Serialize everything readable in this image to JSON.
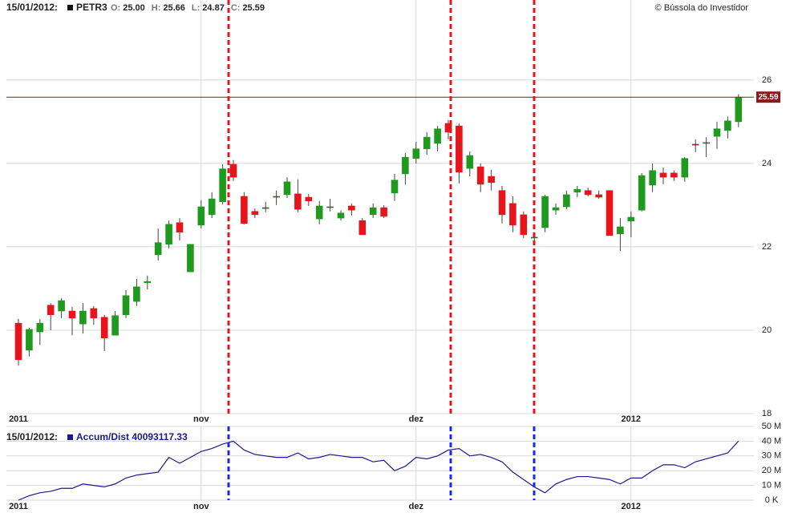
{
  "chart_data": {
    "type": "candlestick",
    "header": {
      "date": "15/01/2012:",
      "symbol": "PETR3",
      "fields": [
        {
          "label": "O:",
          "value": "25.00"
        },
        {
          "label": "H:",
          "value": "25.66"
        },
        {
          "label": "L:",
          "value": "24.87"
        },
        {
          "label": "C:",
          "value": "25.59"
        }
      ]
    },
    "copyright": "© Bússola do Investidor",
    "categories": [
      "2011",
      null,
      null,
      null,
      null,
      null,
      null,
      null,
      null,
      null,
      null,
      null,
      null,
      null,
      null,
      null,
      null,
      "nov",
      null,
      null,
      null,
      null,
      null,
      null,
      null,
      null,
      null,
      null,
      null,
      null,
      null,
      null,
      null,
      null,
      null,
      null,
      null,
      "dez",
      null,
      null,
      null,
      null,
      null,
      null,
      null,
      null,
      null,
      null,
      null,
      null,
      null,
      null,
      null,
      null,
      null,
      null,
      null,
      "2012",
      null,
      null,
      null,
      null,
      null,
      null,
      null,
      null,
      null,
      null
    ],
    "open": [
      20.17,
      19.52,
      19.96,
      20.6,
      20.46,
      20.46,
      20.15,
      20.52,
      20.31,
      19.88,
      20.37,
      20.69,
      21.14,
      21.81,
      22.06,
      22.58,
      21.4,
      22.52,
      22.77,
      23.08,
      23.98,
      23.21,
      22.85,
      22.92,
      23.19,
      23.25,
      23.27,
      23.19,
      22.67,
      22.96,
      22.69,
      22.98,
      22.63,
      22.77,
      22.94,
      23.29,
      23.75,
      24.12,
      24.35,
      24.48,
      24.96,
      24.9,
      23.88,
      23.92,
      23.69,
      23.35,
      23.04,
      22.77,
      22.23,
      22.46,
      22.88,
      22.96,
      23.31,
      23.35,
      23.25,
      23.35,
      22.31,
      22.62,
      22.88,
      23.48,
      23.77,
      23.77,
      23.67,
      24.46,
      24.5,
      24.65,
      24.79,
      25.0
    ],
    "high": [
      20.27,
      20.06,
      20.27,
      20.65,
      20.77,
      20.56,
      20.65,
      20.58,
      20.37,
      20.46,
      20.96,
      21.23,
      21.31,
      22.44,
      22.63,
      22.69,
      22.06,
      23.12,
      23.31,
      23.98,
      24.08,
      23.31,
      22.92,
      23.08,
      23.35,
      23.67,
      23.62,
      23.27,
      23.1,
      23.15,
      22.87,
      23.04,
      22.69,
      23.04,
      23.0,
      23.75,
      24.25,
      24.52,
      24.75,
      24.9,
      25.04,
      24.96,
      24.29,
      24.0,
      23.85,
      23.46,
      23.21,
      22.85,
      22.35,
      23.25,
      23.04,
      23.35,
      23.46,
      23.42,
      23.35,
      23.35,
      22.69,
      22.85,
      23.77,
      24.0,
      23.9,
      23.83,
      24.15,
      24.58,
      24.63,
      25.0,
      25.12,
      25.66
    ],
    "low": [
      19.15,
      19.37,
      19.65,
      20.0,
      20.29,
      19.88,
      19.92,
      20.13,
      19.5,
      19.88,
      20.29,
      20.58,
      20.98,
      21.67,
      21.96,
      22.15,
      21.4,
      22.44,
      22.69,
      23.02,
      23.58,
      22.54,
      22.69,
      22.83,
      23.0,
      23.17,
      22.83,
      22.98,
      22.54,
      22.85,
      22.63,
      22.75,
      22.29,
      22.69,
      22.69,
      23.1,
      23.5,
      24.0,
      24.21,
      24.29,
      24.58,
      23.52,
      23.69,
      23.31,
      23.35,
      22.56,
      22.35,
      22.21,
      22.1,
      22.35,
      22.77,
      22.9,
      23.19,
      23.21,
      23.15,
      22.27,
      21.9,
      22.23,
      22.85,
      23.31,
      23.5,
      23.58,
      23.56,
      24.27,
      24.15,
      24.35,
      24.6,
      24.87
    ],
    "close": [
      19.29,
      20.02,
      20.17,
      20.37,
      20.71,
      20.29,
      20.46,
      20.29,
      19.81,
      20.35,
      20.83,
      21.04,
      21.17,
      22.1,
      22.54,
      22.35,
      22.06,
      22.96,
      23.15,
      23.87,
      23.67,
      22.56,
      22.77,
      22.94,
      23.21,
      23.56,
      22.9,
      23.1,
      22.98,
      22.96,
      22.81,
      22.88,
      22.29,
      22.94,
      22.73,
      23.6,
      24.15,
      24.35,
      24.63,
      24.83,
      24.75,
      23.79,
      24.19,
      23.5,
      23.54,
      22.77,
      22.52,
      22.29,
      22.23,
      23.21,
      22.94,
      23.25,
      23.38,
      23.25,
      23.19,
      22.27,
      22.48,
      22.71,
      23.71,
      23.83,
      23.67,
      23.67,
      24.12,
      24.44,
      24.5,
      24.83,
      25.02,
      25.59
    ],
    "up_color": "#1f9a1f",
    "down_color": "#e8141c",
    "last_color": "#8b1a1a",
    "ylim": [
      18,
      27.92
    ],
    "yticks": [
      18,
      20,
      22,
      24,
      26
    ],
    "grid": true,
    "indicator": {
      "type": "line",
      "date": "15/01/2012:",
      "label": "Accum/Dist 40093117.33",
      "color": "#1a1a8c",
      "values": [
        0,
        3,
        5,
        6,
        8,
        8,
        11,
        10,
        9,
        11,
        15,
        17,
        18,
        19,
        29,
        25,
        29,
        33,
        35,
        38,
        40,
        34,
        31,
        30,
        29,
        29,
        32,
        28,
        29,
        31,
        30,
        29,
        29,
        26,
        27,
        20,
        23,
        29,
        28,
        30,
        34,
        35,
        30,
        31,
        29,
        26,
        19,
        14,
        9,
        5,
        11,
        14,
        16,
        16,
        15,
        14,
        11,
        15,
        15,
        20,
        24,
        24,
        22,
        26,
        28,
        30,
        32,
        40.09
      ],
      "ylim": [
        0,
        50
      ],
      "yticks": [
        {
          "value": 0,
          "label": "0 K"
        },
        {
          "value": 10,
          "label": "10 M"
        },
        {
          "value": 20,
          "label": "20 M"
        },
        {
          "value": 30,
          "label": "30 M"
        },
        {
          "value": 40,
          "label": "40 M"
        },
        {
          "value": 50,
          "label": "50 M"
        }
      ]
    }
  }
}
